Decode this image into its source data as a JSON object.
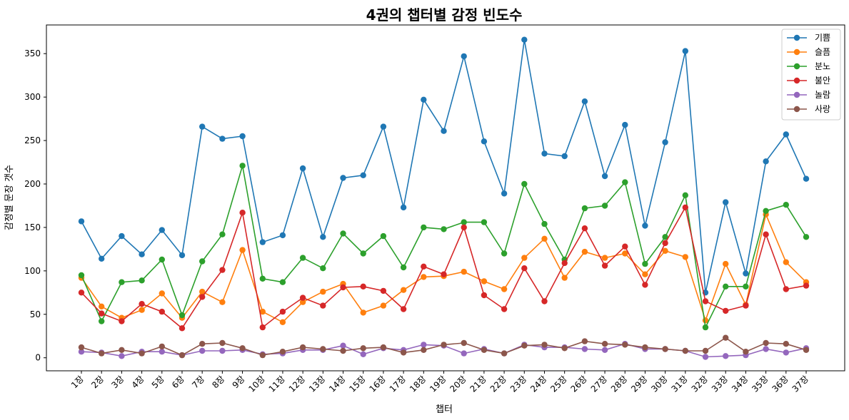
{
  "chart_data": {
    "type": "line",
    "title": "4권의 챕터별 감정 빈도수",
    "xlabel": "챕터",
    "ylabel": "감정별 문장 갯수",
    "ylim": [
      -15,
      383
    ],
    "yticks": [
      0,
      50,
      100,
      150,
      200,
      250,
      300,
      350
    ],
    "grid": false,
    "legend_position": "top-right",
    "categories": [
      "1장",
      "2장",
      "3장",
      "4장",
      "5장",
      "6장",
      "7장",
      "8장",
      "9장",
      "10장",
      "11장",
      "12장",
      "13장",
      "14장",
      "15장",
      "16장",
      "17장",
      "18장",
      "19장",
      "20장",
      "21장",
      "22장",
      "23장",
      "24장",
      "25장",
      "26장",
      "27장",
      "28장",
      "29장",
      "30장",
      "31장",
      "32장",
      "33장",
      "34장",
      "35장",
      "36장",
      "37장"
    ],
    "series": [
      {
        "name": "기쁨",
        "color": "#1f77b4",
        "values": [
          157,
          114,
          140,
          119,
          147,
          118,
          266,
          252,
          255,
          133,
          141,
          218,
          139,
          207,
          210,
          266,
          173,
          297,
          261,
          347,
          249,
          189,
          366,
          235,
          232,
          295,
          209,
          268,
          152,
          248,
          353,
          75,
          179,
          97,
          226,
          257,
          206
        ]
      },
      {
        "name": "슬픔",
        "color": "#ff7f0e",
        "values": [
          92,
          59,
          46,
          55,
          74,
          46,
          76,
          64,
          124,
          53,
          41,
          64,
          76,
          85,
          52,
          60,
          78,
          93,
          94,
          99,
          88,
          79,
          115,
          137,
          92,
          122,
          115,
          120,
          96,
          123,
          116,
          43,
          108,
          61,
          165,
          110,
          87
        ]
      },
      {
        "name": "분노",
        "color": "#2ca02c",
        "values": [
          95,
          42,
          87,
          89,
          113,
          49,
          111,
          142,
          221,
          91,
          87,
          115,
          103,
          143,
          120,
          140,
          104,
          150,
          148,
          156,
          156,
          120,
          200,
          154,
          113,
          172,
          175,
          202,
          108,
          139,
          187,
          35,
          82,
          82,
          169,
          176,
          139
        ]
      },
      {
        "name": "불안",
        "color": "#d62728",
        "values": [
          75,
          51,
          42,
          62,
          53,
          34,
          70,
          101,
          167,
          35,
          53,
          69,
          60,
          81,
          82,
          77,
          56,
          105,
          96,
          150,
          72,
          56,
          103,
          65,
          109,
          149,
          106,
          128,
          84,
          132,
          173,
          65,
          54,
          60,
          142,
          79,
          83
        ]
      },
      {
        "name": "놀람",
        "color": "#9467bd",
        "values": [
          7,
          6,
          2,
          7,
          7,
          3,
          8,
          8,
          9,
          4,
          5,
          9,
          9,
          14,
          4,
          11,
          9,
          15,
          14,
          5,
          10,
          5,
          15,
          12,
          12,
          10,
          9,
          16,
          10,
          10,
          8,
          1,
          2,
          3,
          10,
          6,
          11
        ]
      },
      {
        "name": "사랑",
        "color": "#8c564b",
        "values": [
          12,
          5,
          9,
          5,
          13,
          3,
          16,
          17,
          11,
          3,
          7,
          12,
          10,
          8,
          11,
          12,
          6,
          9,
          15,
          17,
          9,
          5,
          14,
          15,
          11,
          19,
          16,
          15,
          12,
          10,
          8,
          8,
          23,
          7,
          17,
          16,
          9
        ]
      }
    ]
  }
}
